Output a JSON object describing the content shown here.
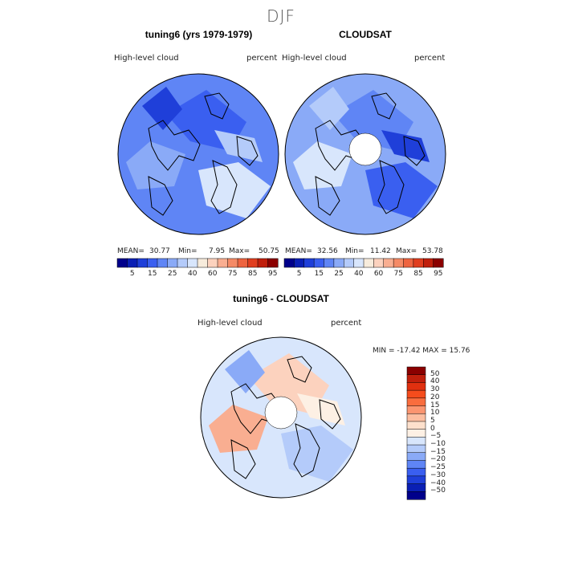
{
  "season": "DJF",
  "panels": {
    "model": {
      "title": "tuning6 (yrs 1979-1979)",
      "variable": "High-level cloud",
      "units": "percent",
      "stats": {
        "mean_label": "MEAN=",
        "mean": "30.77",
        "min_label": "Min=",
        "min": "7.95",
        "max_label": "Max=",
        "max": "50.75"
      }
    },
    "obs": {
      "title": "CLOUDSAT",
      "variable": "High-level cloud",
      "units": "percent",
      "stats": {
        "mean_label": "MEAN=",
        "mean": "32.56",
        "min_label": "Min=",
        "min": "11.42",
        "max_label": "Max=",
        "max": "53.78"
      }
    },
    "diff": {
      "title": "tuning6 - CLOUDSAT",
      "variable": "High-level cloud",
      "units": "percent",
      "stats_text": "MIN = -17.42  MAX =  15.76"
    }
  },
  "colorbar_abs": {
    "colors": [
      "#00008b",
      "#0a1fb4",
      "#1f3fd9",
      "#3a5ff0",
      "#5f85f5",
      "#8aaaf7",
      "#b4cbfa",
      "#d8e6fc",
      "#f7ecdc",
      "#fcd2be",
      "#f9ae91",
      "#f58a66",
      "#ee6440",
      "#e03e1f",
      "#c01f0c",
      "#8b0000"
    ],
    "tick_labels": [
      "5",
      "15",
      "25",
      "40",
      "60",
      "75",
      "85",
      "95"
    ]
  },
  "colorbar_diff": {
    "colors": [
      "#8b0000",
      "#c01f0c",
      "#e0300f",
      "#f54c1c",
      "#f96d3e",
      "#fb9570",
      "#fcbea0",
      "#fde0cc",
      "#fdf0e4",
      "#d8e6fc",
      "#b4cbfa",
      "#8aaaf7",
      "#5f85f5",
      "#3a5ff0",
      "#1f3fd9",
      "#0a1fb4",
      "#00008b"
    ],
    "tick_labels": [
      "50",
      "40",
      "30",
      "20",
      "15",
      "10",
      "5",
      "0",
      "−5",
      "−10",
      "−15",
      "−20",
      "−25",
      "−30",
      "−40",
      "−50"
    ]
  },
  "maps": {
    "model": {
      "fill": "#5f85f5",
      "patches": [
        {
          "color": "#3a5ff0"
        },
        {
          "color": "#8aaaf7"
        },
        {
          "color": "#d8e6fc"
        },
        {
          "color": "#1f3fd9"
        },
        {
          "color": "#b4cbfa"
        }
      ]
    },
    "obs": {
      "fill": "#8aaaf7",
      "hole": true,
      "patches": [
        {
          "color": "#5f85f5"
        },
        {
          "color": "#d8e6fc"
        },
        {
          "color": "#3a5ff0"
        },
        {
          "color": "#b4cbfa"
        },
        {
          "color": "#1f3fd9"
        }
      ]
    },
    "diff": {
      "fill": "#d8e6fc",
      "hole": true,
      "patches": [
        {
          "color": "#fcd2be"
        },
        {
          "color": "#f9ae91"
        },
        {
          "color": "#b4cbfa"
        },
        {
          "color": "#8aaaf7"
        },
        {
          "color": "#fdf0e4"
        }
      ]
    }
  }
}
